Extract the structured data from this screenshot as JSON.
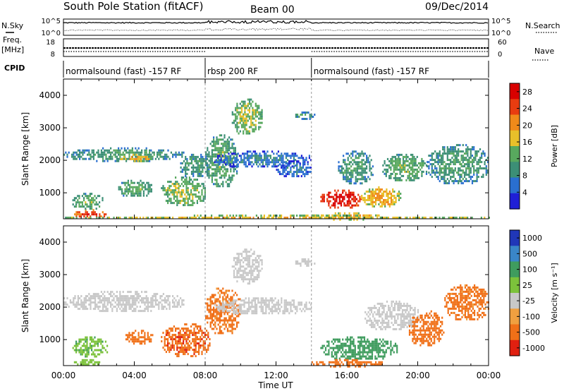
{
  "header": {
    "station": "South Pole Station (fitACF)",
    "beam": "Beam 00",
    "date": "09/Dec/2014"
  },
  "top_panels": {
    "nsky_label": "N.Sky",
    "nsearch_label": "N.Search",
    "noise_tick_hi": "10^5",
    "noise_tick_lo": "10^0",
    "freq_label_1": "Freq.",
    "freq_label_2": "[MHz]",
    "freq_ticks": [
      "18",
      "8"
    ],
    "nave_label": "Nave",
    "nave_ticks": [
      "60",
      "0"
    ],
    "cpid_label": "CPID"
  },
  "cpid_segments": [
    {
      "label": "normalsound (fast) -157 RF",
      "start_hour": 0,
      "end_hour": 8
    },
    {
      "label": "rbsp 200 RF",
      "start_hour": 8,
      "end_hour": 14
    },
    {
      "label": "normalsound (fast) -157 RF",
      "start_hour": 14,
      "end_hour": 24
    }
  ],
  "xaxis": {
    "label": "Time UT",
    "ticks": [
      "00:00",
      "04:00",
      "08:00",
      "12:00",
      "16:00",
      "20:00",
      "00:00"
    ]
  },
  "chart_data": [
    {
      "type": "heatmap",
      "name": "power",
      "ylabel": "Slant Range [km]",
      "xlabel": "Time UT",
      "xlim": [
        0,
        24
      ],
      "ylim": [
        200,
        4500
      ],
      "yticks": [
        "4000",
        "3000",
        "2000",
        "1000"
      ],
      "colorbar": {
        "label": "Power [dB]",
        "ticks": [
          "28",
          "24",
          "20",
          "16",
          "12",
          "8",
          "4"
        ],
        "range": [
          0,
          30
        ],
        "colors": [
          "#1f1fd6",
          "#2a6fd0",
          "#3c8f76",
          "#58a85e",
          "#e8c02a",
          "#f08a1a",
          "#e83c10",
          "#d80000"
        ]
      },
      "regions": [
        {
          "t": [
            0.0,
            6.8
          ],
          "r": [
            2000,
            2400
          ],
          "v": 10
        },
        {
          "t": [
            3.2,
            5.0
          ],
          "r": [
            2000,
            2200
          ],
          "v": 18
        },
        {
          "t": [
            0.6,
            2.4
          ],
          "r": [
            250,
            500
          ],
          "v": 24
        },
        {
          "t": [
            0.5,
            2.2
          ],
          "r": [
            500,
            1000
          ],
          "v": 12
        },
        {
          "t": [
            3.0,
            5.0
          ],
          "r": [
            900,
            1400
          ],
          "v": 12
        },
        {
          "t": [
            5.5,
            8.0
          ],
          "r": [
            600,
            1500
          ],
          "v": 14
        },
        {
          "t": [
            6.5,
            8.3
          ],
          "r": [
            1500,
            2200
          ],
          "v": 10
        },
        {
          "t": [
            8.0,
            9.8
          ],
          "r": [
            1200,
            2800
          ],
          "v": 12
        },
        {
          "t": [
            9.5,
            11.2
          ],
          "r": [
            2800,
            3900
          ],
          "v": 14
        },
        {
          "t": [
            8.5,
            14.0
          ],
          "r": [
            1800,
            2300
          ],
          "v": 6
        },
        {
          "t": [
            12.0,
            14.0
          ],
          "r": [
            1500,
            2000
          ],
          "v": 6
        },
        {
          "t": [
            13.0,
            14.2
          ],
          "r": [
            3300,
            3500
          ],
          "v": 10
        },
        {
          "t": [
            14.5,
            16.8
          ],
          "r": [
            550,
            1100
          ],
          "v": 27
        },
        {
          "t": [
            16.8,
            19.0
          ],
          "r": [
            600,
            1200
          ],
          "v": 18
        },
        {
          "t": [
            14.0,
            18.0
          ],
          "r": [
            200,
            400
          ],
          "v": 18
        },
        {
          "t": [
            15.5,
            17.5
          ],
          "r": [
            1300,
            2300
          ],
          "v": 10
        },
        {
          "t": [
            18.0,
            20.5
          ],
          "r": [
            1400,
            2200
          ],
          "v": 12
        },
        {
          "t": [
            20.5,
            24.0
          ],
          "r": [
            1300,
            2500
          ],
          "v": 10
        },
        {
          "t": [
            0.0,
            24.0
          ],
          "r": [
            220,
            330
          ],
          "v": 16
        }
      ]
    },
    {
      "type": "heatmap",
      "name": "velocity",
      "ylabel": "Slant Range [km]",
      "xlabel": "Time UT",
      "xlim": [
        0,
        24
      ],
      "ylim": [
        200,
        4500
      ],
      "yticks": [
        "4000",
        "3000",
        "2000",
        "1000"
      ],
      "colorbar": {
        "label": "Velocity [m s^-1]",
        "ticks": [
          "1000",
          "500",
          "100",
          "25",
          "-25",
          "-100",
          "-500",
          "-1000"
        ],
        "levels": [
          1000,
          500,
          100,
          25,
          -25,
          -100,
          -500,
          -1000
        ],
        "colors": [
          "#2037b8",
          "#3a86c8",
          "#3f9c5e",
          "#7cc23b",
          "#c8c8c8",
          "#f0a040",
          "#f07018",
          "#e02010"
        ]
      },
      "regions": [
        {
          "t": [
            0.0,
            6.8
          ],
          "r": [
            1900,
            2500
          ],
          "v": 0
        },
        {
          "t": [
            0.5,
            2.5
          ],
          "r": [
            500,
            1100
          ],
          "v": 80
        },
        {
          "t": [
            0.5,
            2.2
          ],
          "r": [
            250,
            400
          ],
          "v": 60
        },
        {
          "t": [
            3.5,
            5.0
          ],
          "r": [
            900,
            1300
          ],
          "v": -150
        },
        {
          "t": [
            5.5,
            8.3
          ],
          "r": [
            500,
            1500
          ],
          "v": -400
        },
        {
          "t": [
            8.0,
            10.0
          ],
          "r": [
            1200,
            2600
          ],
          "v": -150
        },
        {
          "t": [
            9.5,
            11.2
          ],
          "r": [
            2700,
            3800
          ],
          "v": 0
        },
        {
          "t": [
            8.5,
            14.0
          ],
          "r": [
            1800,
            2300
          ],
          "v": 0
        },
        {
          "t": [
            13.0,
            14.2
          ],
          "r": [
            3300,
            3500
          ],
          "v": 0
        },
        {
          "t": [
            14.5,
            18.8
          ],
          "r": [
            400,
            1100
          ],
          "v": 300
        },
        {
          "t": [
            14.0,
            18.0
          ],
          "r": [
            200,
            400
          ],
          "v": -200
        },
        {
          "t": [
            17.0,
            20.0
          ],
          "r": [
            1300,
            2200
          ],
          "v": 0
        },
        {
          "t": [
            19.5,
            21.5
          ],
          "r": [
            800,
            1900
          ],
          "v": -300
        },
        {
          "t": [
            21.5,
            24.0
          ],
          "r": [
            1600,
            2700
          ],
          "v": -150
        }
      ]
    }
  ]
}
